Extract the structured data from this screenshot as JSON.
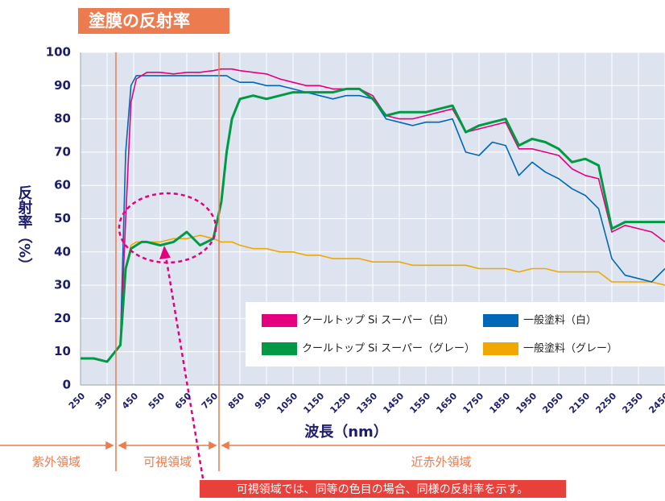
{
  "chart_data": {
    "type": "line",
    "title": "塗膜の反射率",
    "y_label": "反射率（%）",
    "x_label": "波長（nm）",
    "regions": [
      "紫外領域",
      "可視領域",
      "近赤外領域"
    ],
    "annotation": "可視領域では、同等の色目の場合、同様の反射率を示す。",
    "legend": "bottom-right",
    "grid": true,
    "xlim": [
      250,
      2450
    ],
    "ylim": [
      0,
      100
    ],
    "xticks": [
      250,
      350,
      450,
      550,
      650,
      750,
      850,
      950,
      1050,
      1150,
      1250,
      1350,
      1450,
      1550,
      1650,
      1750,
      1850,
      1950,
      2050,
      2150,
      2250,
      2350,
      2450
    ],
    "yticks": [
      0,
      10,
      20,
      30,
      40,
      50,
      60,
      70,
      80,
      90,
      100
    ],
    "x": [
      250,
      300,
      350,
      400,
      420,
      440,
      460,
      480,
      500,
      550,
      600,
      650,
      700,
      750,
      780,
      800,
      820,
      850,
      900,
      950,
      1000,
      1050,
      1100,
      1150,
      1200,
      1250,
      1300,
      1350,
      1400,
      1450,
      1500,
      1550,
      1600,
      1650,
      1700,
      1750,
      1800,
      1850,
      1900,
      1950,
      2000,
      2050,
      2100,
      2150,
      2200,
      2250,
      2300,
      2350,
      2400,
      2450
    ],
    "series": [
      {
        "name": "クールトップ Si スーパー（白）",
        "color": "#e4007f",
        "values": [
          8,
          8,
          7,
          12,
          50,
          85,
          92,
          93,
          94,
          94,
          93.5,
          94,
          94,
          94.5,
          95,
          95,
          95,
          94.5,
          94,
          93.5,
          92,
          91,
          90,
          90,
          89,
          89,
          89,
          87,
          81,
          80,
          80,
          81,
          82,
          83,
          76,
          77,
          78,
          79,
          71,
          71,
          70,
          69,
          65,
          63,
          62,
          46,
          48,
          47,
          46,
          43
        ]
      },
      {
        "name": "一般塗料（白）",
        "color": "#0068b7",
        "values": [
          8,
          8,
          7,
          12,
          70,
          90,
          93,
          93,
          93,
          93,
          93,
          93,
          93,
          93,
          93,
          93,
          92,
          91,
          91,
          90,
          90,
          89,
          88,
          87,
          86,
          87,
          87,
          86,
          80,
          79,
          78,
          79,
          79,
          80,
          70,
          69,
          73,
          72,
          63,
          67,
          64,
          62,
          59,
          57,
          53,
          38,
          33,
          32,
          31,
          35
        ]
      },
      {
        "name": "クールトップ Si スーパー（グレー）",
        "color": "#009944",
        "values": [
          8,
          8,
          7,
          12,
          35,
          41,
          42,
          43,
          43,
          42,
          43,
          46,
          42,
          44,
          55,
          70,
          80,
          86,
          87,
          86,
          87,
          88,
          88,
          88,
          88,
          89,
          89,
          86,
          81,
          82,
          82,
          82,
          83,
          84,
          76,
          78,
          79,
          80,
          72,
          74,
          73,
          71,
          67,
          68,
          66,
          47,
          49,
          49,
          49,
          49
        ]
      },
      {
        "name": "一般塗料（グレー）",
        "color": "#f0a800",
        "values": [
          8,
          8,
          7,
          12,
          35,
          42,
          43,
          43,
          43,
          43,
          44,
          44,
          45,
          44,
          43,
          43,
          43,
          42,
          41,
          41,
          40,
          40,
          39,
          39,
          38,
          38,
          38,
          37,
          37,
          37,
          36,
          36,
          36,
          36,
          36,
          35,
          35,
          35,
          34,
          35,
          35,
          34,
          34,
          34,
          34,
          31,
          31,
          31,
          31,
          30
        ]
      }
    ]
  }
}
